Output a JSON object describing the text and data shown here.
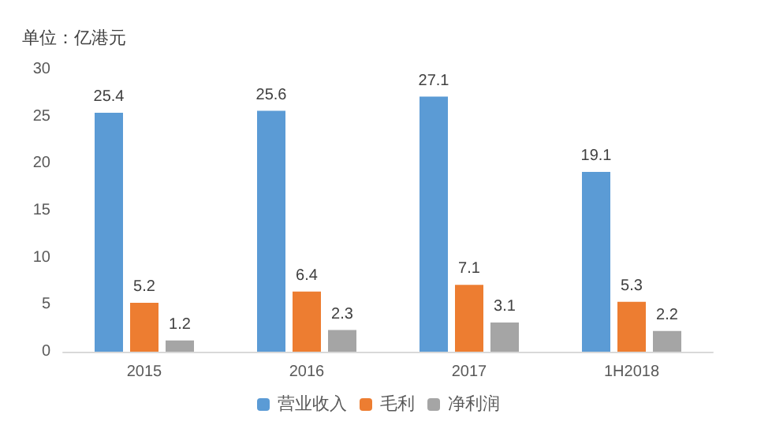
{
  "chart_data": {
    "type": "bar",
    "ylabel": "单位：亿港元",
    "categories": [
      "2015",
      "2016",
      "2017",
      "1H2018"
    ],
    "series": [
      {
        "name": "营业收入",
        "color": "#5b9bd5",
        "values": [
          25.4,
          25.6,
          27.1,
          19.1
        ]
      },
      {
        "name": "毛利",
        "color": "#ed7d31",
        "values": [
          5.2,
          6.4,
          7.1,
          5.3
        ]
      },
      {
        "name": "净利润",
        "color": "#a5a5a5",
        "values": [
          1.2,
          2.3,
          3.1,
          2.2
        ]
      }
    ],
    "ylim": [
      0,
      30
    ],
    "yticks": [
      0,
      5,
      10,
      15,
      20,
      25,
      30
    ],
    "grid": false,
    "legend": "bottom",
    "data_labels": true
  }
}
